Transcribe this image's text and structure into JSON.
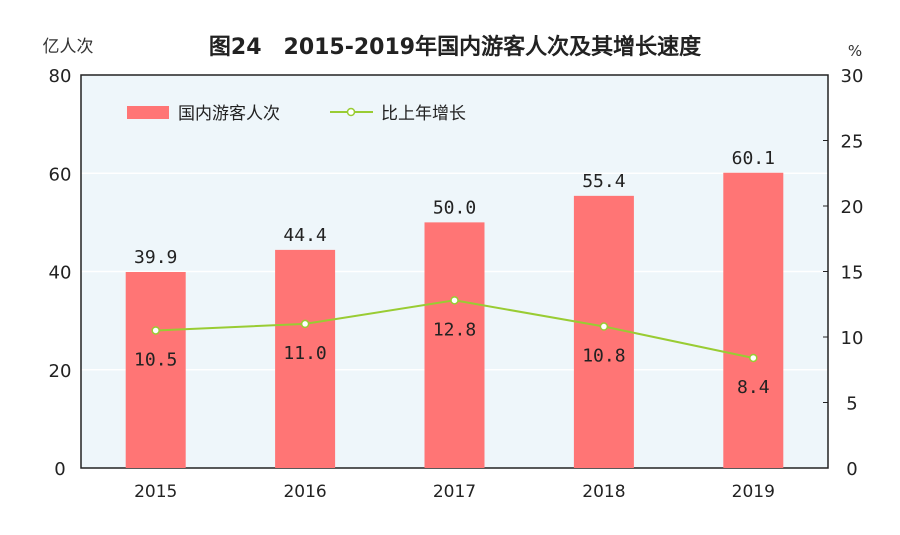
{
  "chart_data": {
    "type": "bar+line",
    "title": "图24　2015-2019年国内游客人次及其增长速度",
    "ylabel_left": "亿人次",
    "ylabel_right": "%",
    "categories": [
      "2015",
      "2016",
      "2017",
      "2018",
      "2019"
    ],
    "ylim_left": [
      0,
      80
    ],
    "yticks_left": [
      0,
      20,
      40,
      60,
      80
    ],
    "ylim_right": [
      0,
      30
    ],
    "yticks_right": [
      0,
      5,
      10,
      15,
      20,
      25,
      30
    ],
    "grid": true,
    "legend_placement": "top-left",
    "series": [
      {
        "name": "国内游客人次",
        "type": "bar",
        "axis": "left",
        "color": "#ff7575",
        "values": [
          39.9,
          44.4,
          50.0,
          55.4,
          60.1
        ],
        "labels": [
          "39.9",
          "44.4",
          "50.0",
          "55.4",
          "60.1"
        ]
      },
      {
        "name": "比上年增长",
        "type": "line",
        "axis": "right",
        "color": "#99cc33",
        "values": [
          10.5,
          11.0,
          12.8,
          10.8,
          8.4
        ],
        "labels": [
          "10.5",
          "11.0",
          "12.8",
          "10.8",
          "8.4"
        ]
      }
    ],
    "plot_background": "#eef6fa"
  }
}
